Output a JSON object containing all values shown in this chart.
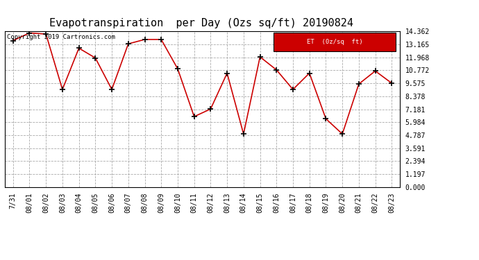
{
  "title": "Evapotranspiration  per Day (Ozs sq/ft) 20190824",
  "copyright_text": "Copyright 2019 Cartronics.com",
  "legend_label": "ET  (0z/sq  ft)",
  "legend_bg": "#cc0000",
  "legend_text_color": "#ffffff",
  "dates": [
    "7/31",
    "08/01",
    "08/02",
    "08/03",
    "08/04",
    "08/05",
    "08/06",
    "08/07",
    "08/08",
    "08/09",
    "08/10",
    "08/11",
    "08/12",
    "08/13",
    "08/14",
    "08/15",
    "08/16",
    "08/17",
    "08/18",
    "08/19",
    "08/20",
    "08/21",
    "08/22",
    "08/23"
  ],
  "values": [
    13.5,
    14.2,
    14.1,
    9.0,
    12.8,
    11.9,
    9.0,
    13.2,
    13.6,
    13.6,
    10.9,
    6.5,
    7.2,
    10.5,
    4.9,
    12.0,
    10.8,
    9.0,
    10.5,
    6.3,
    4.9,
    9.5,
    10.7,
    9.575
  ],
  "line_color": "#cc0000",
  "marker_color": "#000000",
  "marker_size": 3,
  "line_width": 1.2,
  "bg_color": "#ffffff",
  "grid_color": "#aaaaaa",
  "yticks": [
    0.0,
    1.197,
    2.394,
    3.591,
    4.787,
    5.984,
    7.181,
    8.378,
    9.575,
    10.772,
    11.968,
    13.165,
    14.362
  ],
  "ylim": [
    0,
    14.362
  ],
  "title_fontsize": 11,
  "tick_fontsize": 7,
  "copyright_fontsize": 6.5
}
